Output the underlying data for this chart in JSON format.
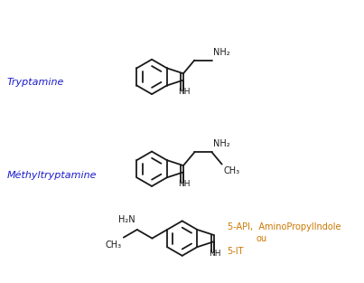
{
  "bg_color": "#ffffff",
  "line_color": "#1a1a1a",
  "label_color_blue": "#1a1acd",
  "label_color_orange": "#cc7700",
  "tryptamine_label": "Tryptamine",
  "methyltryptamine_label": "Méthyltryptamine",
  "api_label1": "5-API,  AminoPropylIndole",
  "api_label2": "ou",
  "api_label3": "5-IT",
  "nh2": "NH₂",
  "nh": "NH",
  "ch3": "CH₃",
  "h2n": "H₂N",
  "lw": 1.3
}
